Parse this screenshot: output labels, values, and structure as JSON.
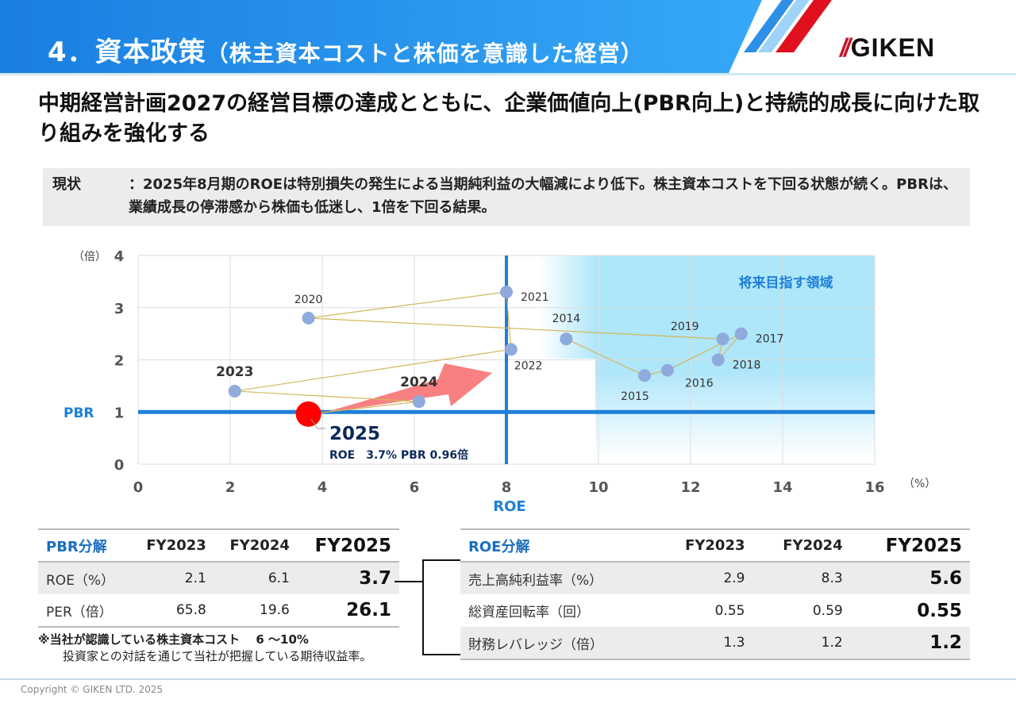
{
  "header": {
    "title_main": "4．資本政策",
    "title_sub": "（株主資本コストと株価を意識した経営）",
    "logo_text": "GIKEN",
    "colors": {
      "banner": "#1e88e5",
      "stripe_red": "#e0101e",
      "stripe_blue": "#2e8fe6"
    }
  },
  "headline": "中期経営計画2027の経営目標の達成とともに、企業価値向上(PBR向上)と持続的成長に向けた取り組みを強化する",
  "status": {
    "label": "現状",
    "text": "：2025年8月期のROEは特別損失の発生による当期純利益の大幅減により低下。株主資本コストを下回る状態が続く。PBRは、業績成長の停滞感から株価も低迷し、1倍を下回る結果。"
  },
  "chart_data": {
    "type": "scatter",
    "xlabel": "ROE",
    "ylabel": "PBR",
    "x_unit": "（%）",
    "y_unit": "（倍）",
    "xlim": [
      0,
      16
    ],
    "ylim": [
      0,
      4
    ],
    "xticks": [
      "0",
      "2",
      "4",
      "6",
      "8",
      "10",
      "12",
      "14",
      "16"
    ],
    "yticks": [
      "0",
      "1",
      "2",
      "3",
      "4"
    ],
    "grid": true,
    "reference_lines": {
      "x": 8,
      "y": 1
    },
    "region_label": "将来目指す領域",
    "connected": true,
    "points": [
      {
        "label": "2014",
        "x": 9.3,
        "y": 2.4
      },
      {
        "label": "2015",
        "x": 11.0,
        "y": 1.7
      },
      {
        "label": "2016",
        "x": 11.5,
        "y": 1.8
      },
      {
        "label": "2017",
        "x": 13.1,
        "y": 2.5
      },
      {
        "label": "2018",
        "x": 12.6,
        "y": 2.0
      },
      {
        "label": "2019",
        "x": 12.7,
        "y": 2.4
      },
      {
        "label": "2020",
        "x": 3.7,
        "y": 2.8
      },
      {
        "label": "2021",
        "x": 8.0,
        "y": 3.3
      },
      {
        "label": "2022",
        "x": 8.1,
        "y": 2.2
      },
      {
        "label": "2023",
        "x": 2.1,
        "y": 1.4
      },
      {
        "label": "2024",
        "x": 6.1,
        "y": 1.2
      },
      {
        "label": "2025",
        "x": 3.7,
        "y": 0.96
      }
    ],
    "highlight": {
      "label": "2025",
      "detail": "ROE　3.7% PBR 0.96倍"
    },
    "colors": {
      "point": "#8faadc",
      "highlight": "#ff0000",
      "line": "#d4b65a",
      "reference": "#1e7fd8",
      "region": "#aee6fa",
      "arrow": "#f88080"
    }
  },
  "pbr_table": {
    "headers": [
      "PBR分解",
      "FY2023",
      "FY2024",
      "FY2025"
    ],
    "rows": [
      [
        "ROE（%）",
        "2.1",
        "6.1",
        "3.7"
      ],
      [
        "PER（倍）",
        "65.8",
        "19.6",
        "26.1"
      ]
    ]
  },
  "roe_table": {
    "headers": [
      "ROE分解",
      "FY2023",
      "FY2024",
      "FY2025"
    ],
    "rows": [
      [
        "売上高純利益率（%）",
        "2.9",
        "8.3",
        "5.6"
      ],
      [
        "総資産回転率（回）",
        "0.55",
        "0.59",
        "0.55"
      ],
      [
        "財務レバレッジ（倍）",
        "1.3",
        "1.2",
        "1.2"
      ]
    ]
  },
  "note": {
    "line1": "※当社が認識している株主資本コスト　 6 ～10%",
    "line2": "投資家との対話を通じて当社が把握している期待収益率。"
  },
  "footer": {
    "copyright": "Copyright © GIKEN LTD. 2025"
  }
}
